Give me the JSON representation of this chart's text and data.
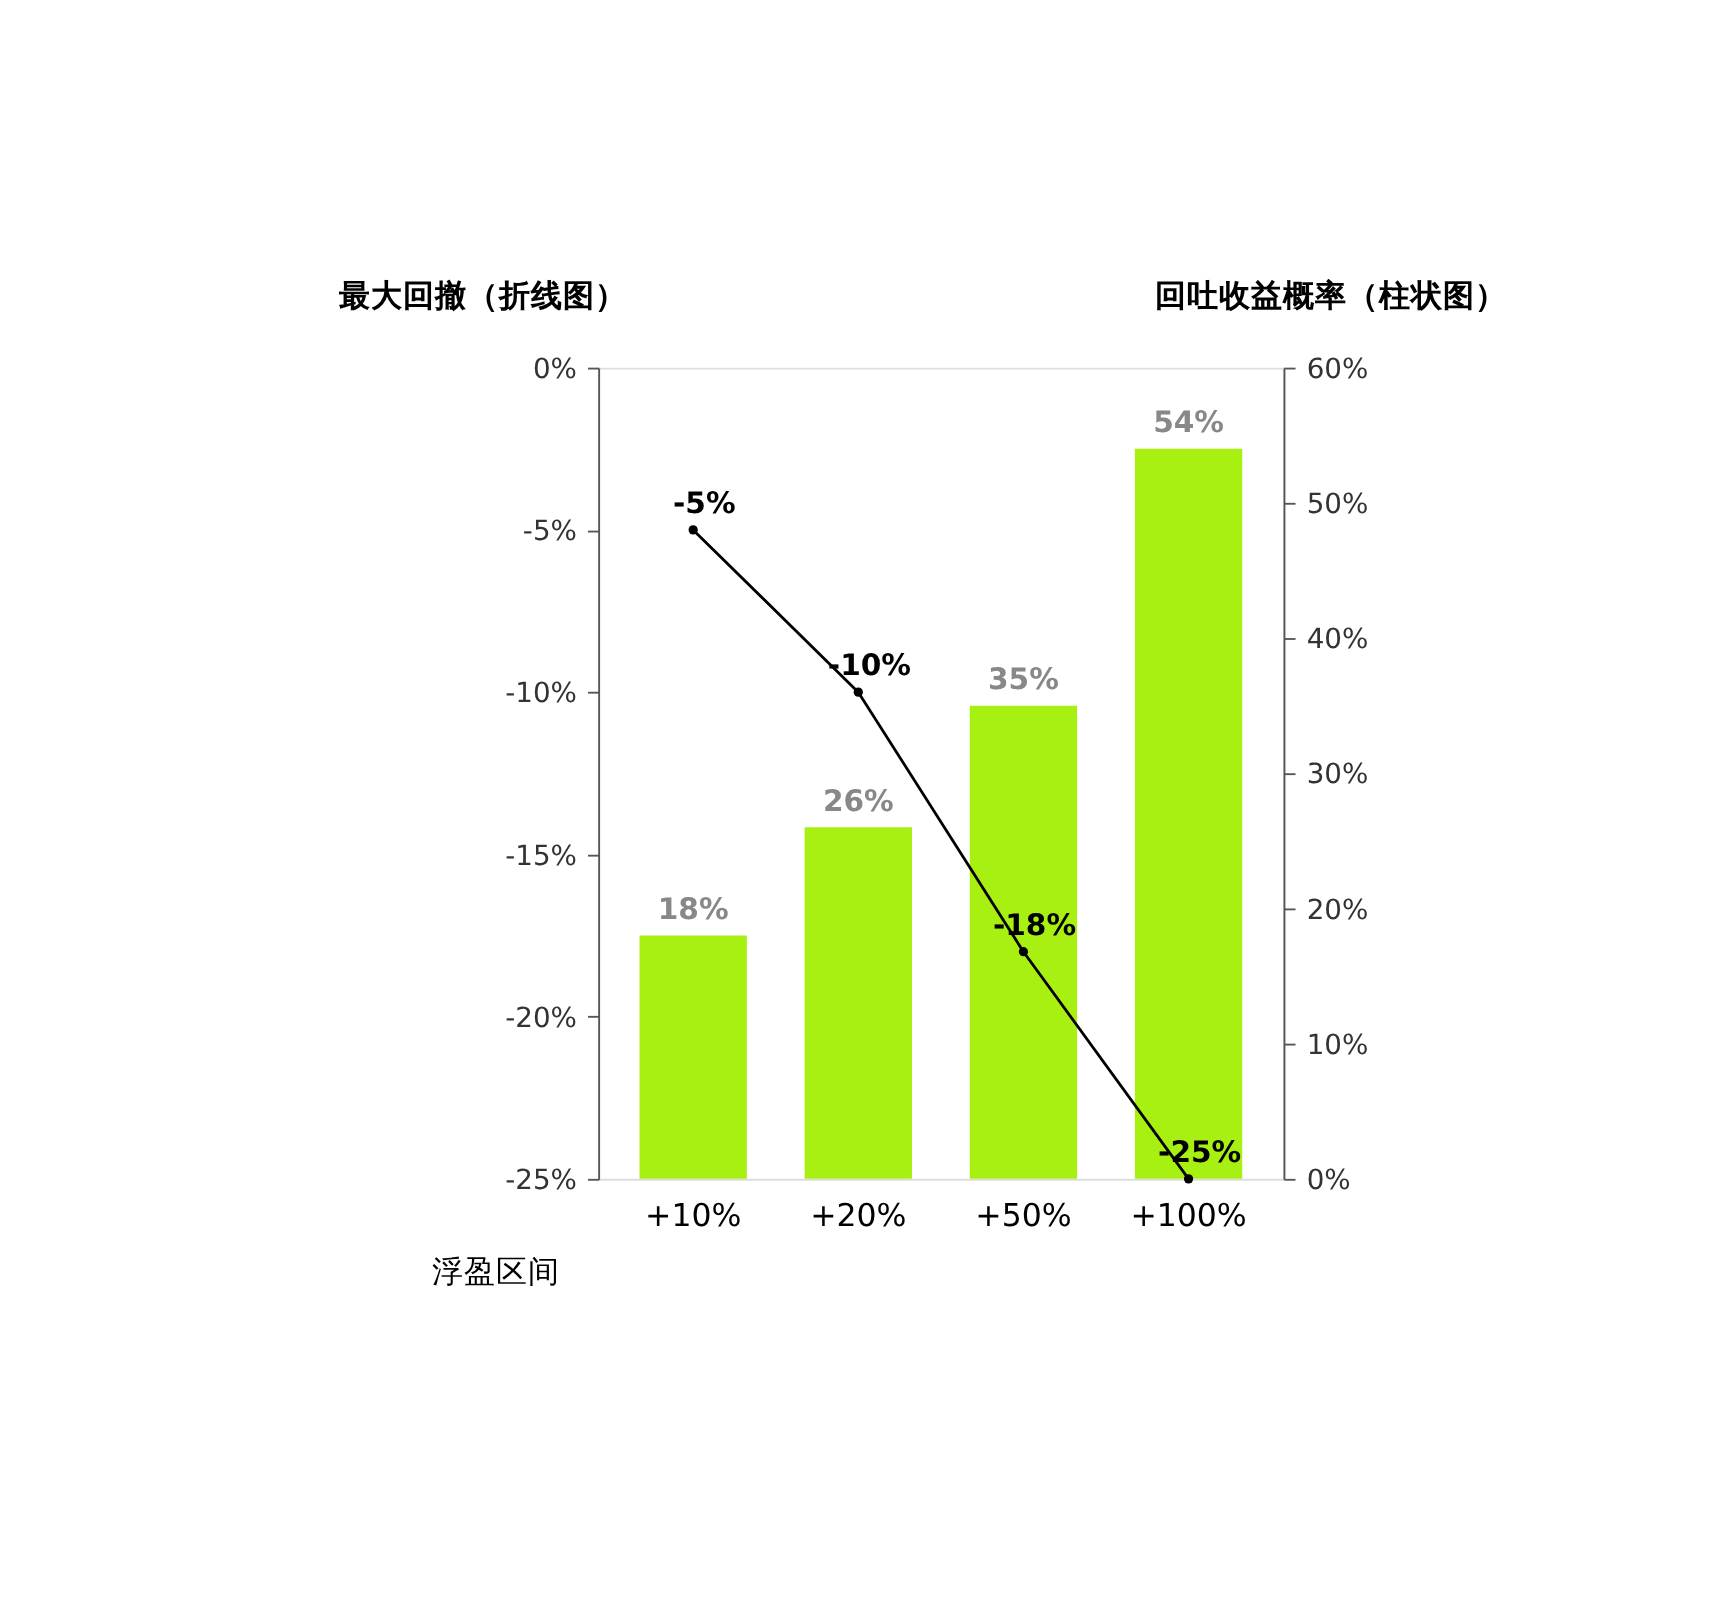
{
  "chart_data": {
    "type": "bar",
    "categories": [
      "+10%",
      "+20%",
      "+50%",
      "+100%"
    ],
    "xlabel": "浮盈区间",
    "ylabel": "最大回撤（折线图）",
    "y2label": "回吐收益概率（柱状图）",
    "series": [
      {
        "axis": "y2",
        "color": "#a8f012",
        "values": [
          18,
          26,
          35,
          54
        ],
        "value_labels": [
          "18%",
          "26%",
          "35%",
          "54%"
        ]
      },
      {
        "type": "line",
        "color": "#000000",
        "values": [
          -5,
          -10,
          -18,
          -25
        ],
        "value_labels": [
          "-5%",
          "-10%",
          "-18%",
          "-25%"
        ]
      }
    ],
    "ylim": [
      -25,
      0
    ],
    "yticks": [
      {
        "value": -25,
        "label": "-25%"
      },
      {
        "value": -20,
        "label": "-20%"
      },
      {
        "value": -15,
        "label": "-15%"
      },
      {
        "value": -10,
        "label": "-10%"
      },
      {
        "value": -5,
        "label": "-5%"
      },
      {
        "value": 0,
        "label": "0%"
      }
    ],
    "y2lim": [
      0,
      60
    ],
    "y2ticks": [
      {
        "value": 0,
        "label": "0%"
      },
      {
        "value": 10,
        "label": "10%"
      },
      {
        "value": 20,
        "label": "20%"
      },
      {
        "value": 30,
        "label": "30%"
      },
      {
        "value": 40,
        "label": "40%"
      },
      {
        "value": 50,
        "label": "50%"
      },
      {
        "value": 60,
        "label": "60%"
      }
    ],
    "marker": "circle",
    "line_style": "solid"
  }
}
